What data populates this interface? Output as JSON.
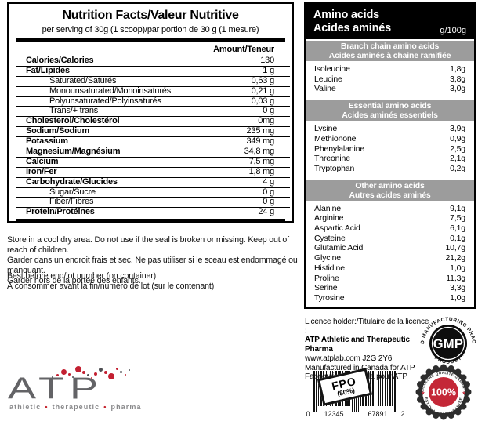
{
  "colors": {
    "accent_red": "#c32031",
    "band_gray": "#9c9c9c",
    "header_black": "#000000",
    "logo_gray": "#636366"
  },
  "nutrition_facts": {
    "title": "Nutrition Facts/Valeur Nutritive",
    "subtitle": "per serving of 30g (1 scoop)/par portion de 30 g (1 mesure)",
    "amount_header": "Amount/Teneur",
    "rows": [
      {
        "label": "Calories/Calories",
        "value": "130",
        "style": "bold"
      },
      {
        "label": "Fat/Lipides",
        "value": "1 g",
        "style": "bold"
      },
      {
        "label": "Saturated/Saturés",
        "value": "0,63 g",
        "style": "indent"
      },
      {
        "label": "Monounsaturated/Monoinsaturés",
        "value": "0,21 g",
        "style": "indent"
      },
      {
        "label": "Polyunsaturated/Polyinsaturés",
        "value": "0,03 g",
        "style": "indent"
      },
      {
        "label": "Trans/+ trans",
        "value": "0 g",
        "style": "indent"
      },
      {
        "label": "Cholesterol/Cholestérol",
        "value": "0mg",
        "style": "bold"
      },
      {
        "label": "Sodium/Sodium",
        "value": "235 mg",
        "style": "bold"
      },
      {
        "label": "Potassium",
        "value": "349 mg",
        "style": "bold"
      },
      {
        "label": "Magnesium/Magnésium",
        "value": "34,8 mg",
        "style": "bold"
      },
      {
        "label": "Calcium",
        "value": "7,5 mg",
        "style": "bold"
      },
      {
        "label": "Iron/Fer",
        "value": "1,8 mg",
        "style": "bold"
      },
      {
        "label": "Carbohydrate/Glucides",
        "value": "4 g",
        "style": "bold"
      },
      {
        "label": "Sugar/Sucre",
        "value": "0 g",
        "style": "indent"
      },
      {
        "label": "Fiber/Fibres",
        "value": "0 g",
        "style": "indent"
      },
      {
        "label": "Protein/Protéines",
        "value": "24 g",
        "style": "bold"
      }
    ]
  },
  "storage_notes": [
    "Store in a cool dry area. Do not use if the seal is broken or missing. Keep out of reach of children.",
    "Garder dans un endroit frais et sec. Ne pas utiliser si le sceau est endommagé ou manquant.",
    "Garder hors de la portée des enfants."
  ],
  "lot_notes": [
    "Best before end/lot number (on container)",
    "À consommer avant la fin/numéro de lot (sur le contenant)"
  ],
  "amino_acids": {
    "title_en": "Amino acids",
    "title_fr": "Acides aminés",
    "unit": "g/100g",
    "sections": [
      {
        "title_en": "Branch chain amino acids",
        "title_fr": "Acides aminés à chaine ramifiée",
        "rows": [
          {
            "name": "Isoleucine",
            "value": "1,8g"
          },
          {
            "name": "Leucine",
            "value": "3,8g"
          },
          {
            "name": "Valine",
            "value": "3,0g"
          }
        ]
      },
      {
        "title_en": "Essential amino acids",
        "title_fr": "Acides aminés essentiels",
        "rows": [
          {
            "name": "Lysine",
            "value": "3,9g"
          },
          {
            "name": "Methionone",
            "value": "0,9g"
          },
          {
            "name": "Phenylalanine",
            "value": "2,5g"
          },
          {
            "name": "Threonine",
            "value": "2,1g"
          },
          {
            "name": "Tryptophan",
            "value": "0,2g"
          }
        ]
      },
      {
        "title_en": "Other amino acids",
        "title_fr": "Autres acides aminés",
        "rows": [
          {
            "name": "Alanine",
            "value": "9,1g"
          },
          {
            "name": "Arginine",
            "value": "7,5g"
          },
          {
            "name": "Aspartic Acid",
            "value": "6,1g"
          },
          {
            "name": "Cysteine",
            "value": "0,1g"
          },
          {
            "name": "Glutamic Acid",
            "value": "10,7g"
          },
          {
            "name": "Glycine",
            "value": "21,2g"
          },
          {
            "name": "Histidine",
            "value": "1,0g"
          },
          {
            "name": "Proline",
            "value": "11,3g"
          },
          {
            "name": "Serine",
            "value": "3,3g"
          },
          {
            "name": "Tyrosine",
            "value": "1,0g"
          }
        ]
      }
    ]
  },
  "licence": {
    "lines": [
      {
        "text": "Licence holder:/Titulaire de la licence :",
        "style": ""
      },
      {
        "text": "ATP Athletic and Therapeutic Pharma",
        "style": "bold"
      },
      {
        "text": "www.atplab.com  J2G 2Y6",
        "style": ""
      },
      {
        "text": "Manufactured in Canada for ATP",
        "style": ""
      },
      {
        "text": "Fabriqué au Canada pour ATP",
        "style": ""
      }
    ]
  },
  "gmp_seal": {
    "center": "GMP",
    "arc_top": "GOOD MANUFACTURING PRACTICE",
    "arc_bottom": "· PRODUCT ·"
  },
  "quality_seal": {
    "value": "100%",
    "arc_top": "MEILLEURE QUALITÉ GARANTIE",
    "arc_bottom": "BEST QUALITY GUARANTEED",
    "star": "★"
  },
  "barcode": {
    "left_digit": "0",
    "group1": "12345",
    "group2": "67891",
    "right_digit": "2",
    "stamp_line1": "FPO",
    "stamp_line2": "(80%)"
  },
  "logo": {
    "text": "ATP",
    "tagline_words": [
      "athletic",
      "therapeutic",
      "pharma"
    ],
    "bullet": "•"
  }
}
